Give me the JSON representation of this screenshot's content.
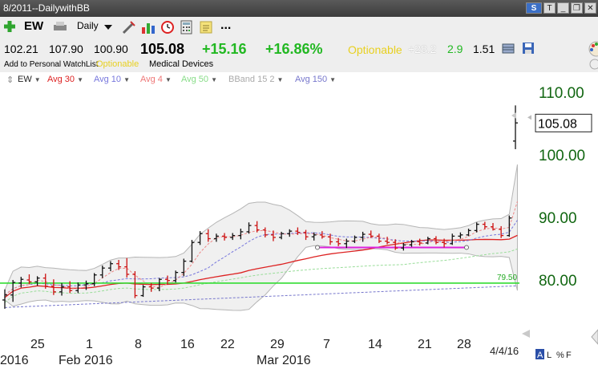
{
  "window": {
    "title": "8/2011--DailywithBB"
  },
  "toolbar": {
    "symbol": "EW",
    "period": "Daily",
    "more": "..."
  },
  "quote": {
    "open": "102.21",
    "high": "107.90",
    "low": "100.90",
    "last": "105.08",
    "change": "+15.16",
    "change_pct": "+16.86%",
    "optionable": "Optionable",
    "stat1": "+28.2",
    "stat2": "2.9",
    "stat3": "1.51"
  },
  "info": {
    "watchlist": "Add to Personal WatchList",
    "optionable": "Optionable",
    "industry": "Medical Devices"
  },
  "legend": [
    {
      "label": "EW",
      "color": "#222222"
    },
    {
      "label": "Avg 30",
      "color": "#dd2222"
    },
    {
      "label": "Avg 10",
      "color": "#7777dd"
    },
    {
      "label": "Avg 4",
      "color": "#ee7777"
    },
    {
      "label": "Avg 50",
      "color": "#88dd88"
    },
    {
      "label": "BBand 15 2",
      "color": "#aaaaaa"
    },
    {
      "label": "Avg 150",
      "color": "#7777cc"
    }
  ],
  "chart_data": {
    "type": "candlestick",
    "price_axis": {
      "ylim": [
        75,
        112
      ],
      "ticks": [
        "110.00",
        "100.00",
        "90.00",
        "80.00"
      ]
    },
    "last_price_label": "105.08",
    "level_line": {
      "value": 79.5,
      "label": "79.50",
      "color": "#33dd33"
    },
    "x_labels": [
      "2016",
      "25",
      "Feb 2016",
      "1",
      "8",
      "16",
      "22",
      "29",
      "Mar 2016",
      "7",
      "14",
      "21",
      "28"
    ],
    "date_stamp": "4/4/16",
    "scale_controls": [
      "A",
      "L",
      "%",
      "F"
    ],
    "bars": [
      {
        "o": 76.8,
        "h": 78.5,
        "l": 75.4,
        "c": 77.6
      },
      {
        "o": 77.6,
        "h": 80.0,
        "l": 76.5,
        "c": 79.6
      },
      {
        "o": 79.5,
        "h": 80.5,
        "l": 78.8,
        "c": 80.1
      },
      {
        "o": 80.0,
        "h": 80.9,
        "l": 79.3,
        "c": 79.7
      },
      {
        "o": 79.7,
        "h": 80.6,
        "l": 79.1,
        "c": 80.3
      },
      {
        "o": 80.3,
        "h": 81.0,
        "l": 78.6,
        "c": 79.0
      },
      {
        "o": 79.0,
        "h": 80.1,
        "l": 77.6,
        "c": 78.1
      },
      {
        "o": 78.1,
        "h": 79.5,
        "l": 77.5,
        "c": 78.9
      },
      {
        "o": 78.9,
        "h": 79.8,
        "l": 77.9,
        "c": 78.3
      },
      {
        "o": 78.3,
        "h": 79.6,
        "l": 77.9,
        "c": 79.2
      },
      {
        "o": 79.2,
        "h": 79.9,
        "l": 78.4,
        "c": 79.4
      },
      {
        "o": 79.4,
        "h": 81.1,
        "l": 79.0,
        "c": 80.8
      },
      {
        "o": 80.8,
        "h": 82.3,
        "l": 80.3,
        "c": 81.9
      },
      {
        "o": 81.9,
        "h": 83.0,
        "l": 81.4,
        "c": 82.6
      },
      {
        "o": 82.6,
        "h": 83.2,
        "l": 81.6,
        "c": 82.1
      },
      {
        "o": 82.1,
        "h": 83.5,
        "l": 80.4,
        "c": 80.9
      },
      {
        "o": 80.9,
        "h": 81.4,
        "l": 77.1,
        "c": 77.5
      },
      {
        "o": 77.5,
        "h": 79.2,
        "l": 77.3,
        "c": 78.9
      },
      {
        "o": 78.9,
        "h": 79.5,
        "l": 78.1,
        "c": 78.7
      },
      {
        "o": 78.7,
        "h": 80.3,
        "l": 78.2,
        "c": 80.1
      },
      {
        "o": 80.1,
        "h": 80.7,
        "l": 79.3,
        "c": 79.9
      },
      {
        "o": 79.9,
        "h": 81.5,
        "l": 79.6,
        "c": 81.2
      },
      {
        "o": 81.2,
        "h": 83.4,
        "l": 80.6,
        "c": 83.0
      },
      {
        "o": 83.0,
        "h": 86.4,
        "l": 82.8,
        "c": 86.0
      },
      {
        "o": 86.0,
        "h": 87.8,
        "l": 85.6,
        "c": 87.4
      },
      {
        "o": 87.4,
        "h": 88.1,
        "l": 86.1,
        "c": 86.6
      },
      {
        "o": 86.6,
        "h": 87.4,
        "l": 86.1,
        "c": 87.0
      },
      {
        "o": 87.0,
        "h": 87.5,
        "l": 86.3,
        "c": 86.8
      },
      {
        "o": 86.8,
        "h": 87.5,
        "l": 86.4,
        "c": 87.1
      },
      {
        "o": 87.1,
        "h": 88.2,
        "l": 86.5,
        "c": 87.7
      },
      {
        "o": 87.7,
        "h": 89.2,
        "l": 87.4,
        "c": 88.7
      },
      {
        "o": 88.7,
        "h": 89.4,
        "l": 87.6,
        "c": 88.0
      },
      {
        "o": 88.0,
        "h": 88.4,
        "l": 86.8,
        "c": 87.2
      },
      {
        "o": 87.2,
        "h": 87.9,
        "l": 86.2,
        "c": 86.8
      },
      {
        "o": 86.8,
        "h": 87.7,
        "l": 86.5,
        "c": 87.4
      },
      {
        "o": 87.4,
        "h": 88.1,
        "l": 86.9,
        "c": 87.8
      },
      {
        "o": 87.8,
        "h": 88.4,
        "l": 87.2,
        "c": 87.6
      },
      {
        "o": 87.6,
        "h": 88.0,
        "l": 86.4,
        "c": 86.9
      },
      {
        "o": 86.9,
        "h": 87.6,
        "l": 86.3,
        "c": 87.2
      },
      {
        "o": 87.2,
        "h": 87.8,
        "l": 86.6,
        "c": 86.9
      },
      {
        "o": 86.9,
        "h": 87.4,
        "l": 85.6,
        "c": 86.1
      },
      {
        "o": 86.1,
        "h": 86.7,
        "l": 85.4,
        "c": 85.8
      },
      {
        "o": 85.8,
        "h": 86.6,
        "l": 85.1,
        "c": 86.2
      },
      {
        "o": 86.2,
        "h": 87.1,
        "l": 85.9,
        "c": 86.8
      },
      {
        "o": 86.8,
        "h": 87.7,
        "l": 86.1,
        "c": 87.3
      },
      {
        "o": 87.3,
        "h": 87.9,
        "l": 86.7,
        "c": 87.0
      },
      {
        "o": 87.0,
        "h": 87.4,
        "l": 85.9,
        "c": 86.2
      },
      {
        "o": 86.2,
        "h": 86.9,
        "l": 85.7,
        "c": 86.0
      },
      {
        "o": 86.0,
        "h": 86.5,
        "l": 84.8,
        "c": 85.1
      },
      {
        "o": 85.1,
        "h": 85.9,
        "l": 84.7,
        "c": 85.6
      },
      {
        "o": 85.6,
        "h": 86.4,
        "l": 85.3,
        "c": 86.1
      },
      {
        "o": 86.1,
        "h": 86.6,
        "l": 85.5,
        "c": 85.9
      },
      {
        "o": 85.9,
        "h": 86.9,
        "l": 85.7,
        "c": 86.6
      },
      {
        "o": 86.6,
        "h": 87.0,
        "l": 85.7,
        "c": 86.0
      },
      {
        "o": 86.0,
        "h": 86.6,
        "l": 85.2,
        "c": 85.8
      },
      {
        "o": 85.8,
        "h": 87.4,
        "l": 85.6,
        "c": 87.0
      },
      {
        "o": 87.0,
        "h": 87.6,
        "l": 86.6,
        "c": 87.2
      },
      {
        "o": 87.2,
        "h": 88.2,
        "l": 87.0,
        "c": 87.9
      },
      {
        "o": 87.9,
        "h": 89.2,
        "l": 87.6,
        "c": 88.9
      },
      {
        "o": 88.9,
        "h": 89.3,
        "l": 88.1,
        "c": 88.5
      },
      {
        "o": 88.5,
        "h": 89.1,
        "l": 87.9,
        "c": 88.1
      },
      {
        "o": 88.1,
        "h": 88.6,
        "l": 86.7,
        "c": 87.1
      },
      {
        "o": 87.1,
        "h": 90.3,
        "l": 86.9,
        "c": 89.9
      },
      {
        "o": 102.2,
        "h": 107.9,
        "l": 100.9,
        "c": 105.1
      }
    ]
  }
}
